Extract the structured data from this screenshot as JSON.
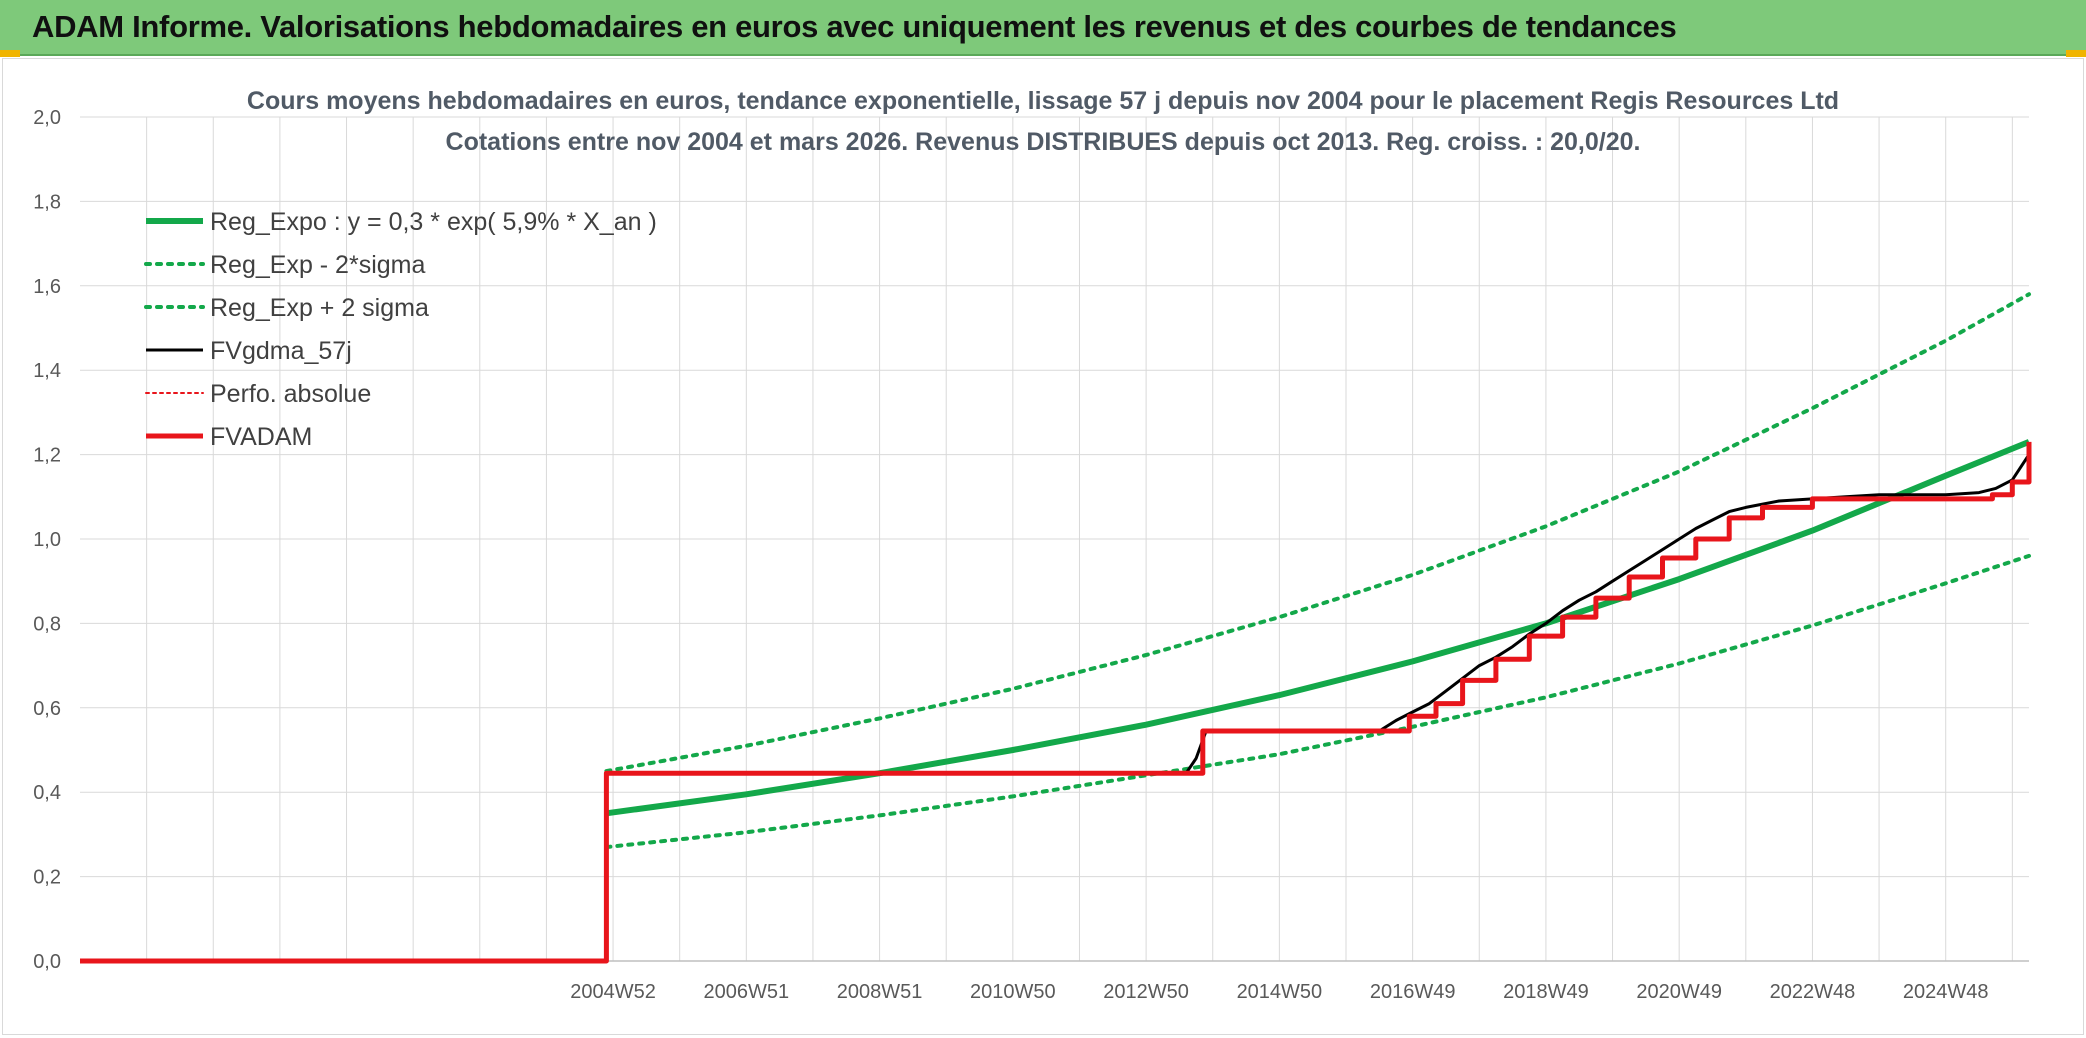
{
  "banner": {
    "title": "ADAM Informe. Valorisations hebdomadaires en euros avec uniquement les revenus et des courbes de tendances"
  },
  "colors": {
    "banner_bg": "#7ec97a",
    "green": "#13a84a",
    "black": "#000000",
    "red": "#e8151b",
    "gridline": "#d9d9d9",
    "accent": "#f0b400"
  },
  "chart_data": {
    "type": "line",
    "title": "Cours moyens hebdomadaires en euros, tendance exponentielle, lissage 57 j depuis nov 2004 pour le placement Regis Resources Ltd",
    "subtitle": "Cotations entre nov 2004 et mars 2026. Revenus DISTRIBUES depuis oct 2013. Reg. croiss. : 20,0/20.",
    "xlabel": "",
    "ylabel": "",
    "x_range": [
      1997.0,
      2026.25
    ],
    "ylim": [
      0,
      2.0
    ],
    "y_ticks": [
      "0,0",
      "0,2",
      "0,4",
      "0,6",
      "0,8",
      "1,0",
      "1,2",
      "1,4",
      "1,6",
      "1,8",
      "2,0"
    ],
    "x_ticks": [
      {
        "label": "2004W52",
        "x": 2005.0
      },
      {
        "label": "2006W51",
        "x": 2007.0
      },
      {
        "label": "2008W51",
        "x": 2009.0
      },
      {
        "label": "2010W50",
        "x": 2011.0
      },
      {
        "label": "2012W50",
        "x": 2013.0
      },
      {
        "label": "2014W50",
        "x": 2015.0
      },
      {
        "label": "2016W49",
        "x": 2017.0
      },
      {
        "label": "2018W49",
        "x": 2019.0
      },
      {
        "label": "2020W49",
        "x": 2021.0
      },
      {
        "label": "2022W48",
        "x": 2023.0
      },
      {
        "label": "2024W48",
        "x": 2025.0
      }
    ],
    "grid": true,
    "legend_position": "top-left",
    "series": [
      {
        "name": "Reg_Expo : y = 0,3 * exp( 5,9% *  X_an )",
        "style": "solid-thick",
        "color": "#13a84a",
        "x": [
          2004.9,
          2007.0,
          2009.0,
          2011.0,
          2013.0,
          2015.0,
          2017.0,
          2019.0,
          2021.0,
          2023.0,
          2025.0,
          2026.25
        ],
        "y": [
          0.35,
          0.395,
          0.445,
          0.5,
          0.56,
          0.63,
          0.71,
          0.8,
          0.905,
          1.02,
          1.15,
          1.23
        ]
      },
      {
        "name": "Reg_Exp - 2*sigma",
        "style": "dotted",
        "color": "#13a84a",
        "x": [
          2004.9,
          2007.0,
          2009.0,
          2011.0,
          2013.0,
          2015.0,
          2017.0,
          2019.0,
          2021.0,
          2023.0,
          2025.0,
          2026.25
        ],
        "y": [
          0.27,
          0.305,
          0.345,
          0.39,
          0.44,
          0.49,
          0.555,
          0.625,
          0.705,
          0.795,
          0.895,
          0.96
        ]
      },
      {
        "name": "Reg_Exp + 2 sigma",
        "style": "dotted",
        "color": "#13a84a",
        "x": [
          2004.9,
          2007.0,
          2009.0,
          2011.0,
          2013.0,
          2015.0,
          2017.0,
          2019.0,
          2021.0,
          2023.0,
          2025.0,
          2026.25
        ],
        "y": [
          0.45,
          0.51,
          0.575,
          0.645,
          0.725,
          0.815,
          0.915,
          1.03,
          1.16,
          1.31,
          1.47,
          1.58
        ]
      },
      {
        "name": "FVgdma_57j",
        "style": "solid",
        "color": "#000000",
        "x": [
          1997.0,
          2004.9,
          2004.9,
          2013.6,
          2013.75,
          2013.9,
          2016.5,
          2016.75,
          2017.0,
          2017.25,
          2017.5,
          2017.75,
          2018.0,
          2018.25,
          2018.5,
          2018.75,
          2019.0,
          2019.25,
          2019.5,
          2019.75,
          2020.0,
          2020.25,
          2020.5,
          2020.75,
          2021.0,
          2021.25,
          2021.5,
          2021.75,
          2022.0,
          2022.5,
          2023.0,
          2023.5,
          2024.0,
          2024.5,
          2025.0,
          2025.5,
          2025.75,
          2026.0,
          2026.25
        ],
        "y": [
          0.0,
          0.0,
          0.445,
          0.445,
          0.48,
          0.545,
          0.545,
          0.57,
          0.59,
          0.61,
          0.64,
          0.67,
          0.7,
          0.72,
          0.745,
          0.775,
          0.8,
          0.83,
          0.855,
          0.875,
          0.9,
          0.925,
          0.95,
          0.975,
          1.0,
          1.025,
          1.045,
          1.065,
          1.075,
          1.09,
          1.095,
          1.1,
          1.105,
          1.105,
          1.105,
          1.11,
          1.12,
          1.14,
          1.2
        ]
      },
      {
        "name": "Perfo. absolue",
        "style": "dotted-thin",
        "color": "#e8151b",
        "x": [],
        "y": []
      },
      {
        "name": "FVADAM",
        "style": "step-thick",
        "color": "#e8151b",
        "x": [
          1997.0,
          2004.9,
          2004.9,
          2013.85,
          2013.85,
          2016.95,
          2016.95,
          2017.35,
          2017.35,
          2017.75,
          2017.75,
          2018.25,
          2018.25,
          2018.75,
          2018.75,
          2019.25,
          2019.25,
          2019.75,
          2019.75,
          2020.25,
          2020.25,
          2020.75,
          2020.75,
          2021.25,
          2021.25,
          2021.75,
          2021.75,
          2022.25,
          2022.25,
          2023.0,
          2023.0,
          2025.7,
          2025.7,
          2026.0,
          2026.0,
          2026.25,
          2026.25
        ],
        "y": [
          0.0,
          0.0,
          0.445,
          0.445,
          0.545,
          0.545,
          0.58,
          0.58,
          0.61,
          0.61,
          0.665,
          0.665,
          0.715,
          0.715,
          0.77,
          0.77,
          0.815,
          0.815,
          0.86,
          0.86,
          0.91,
          0.91,
          0.955,
          0.955,
          1.0,
          1.0,
          1.05,
          1.05,
          1.075,
          1.075,
          1.095,
          1.095,
          1.105,
          1.105,
          1.135,
          1.135,
          1.23
        ]
      }
    ]
  }
}
